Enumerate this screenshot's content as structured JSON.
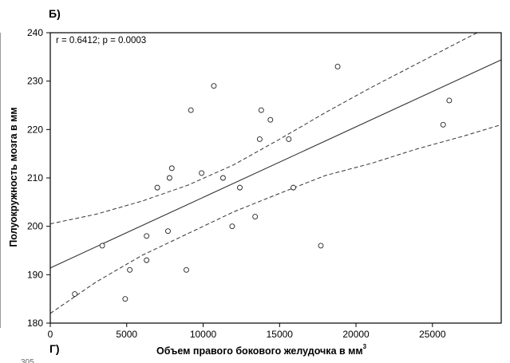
{
  "panel_label_top": "Б)",
  "panel_label_bottom": "Г)",
  "cut_text": "305",
  "chart_data": {
    "type": "scatter",
    "title": "",
    "xlabel_main": "Объем правого бокового желудочка в мм",
    "xlabel_sup": "3",
    "ylabel": "Полуокружность мозга в мм",
    "annotation": "r = 0.6412; p = 0.0003",
    "xlim": [
      0,
      29500
    ],
    "ylim": [
      180,
      240
    ],
    "x_ticks": [
      0,
      5000,
      10000,
      15000,
      20000,
      25000
    ],
    "y_ticks": [
      180,
      190,
      200,
      210,
      220,
      230,
      240
    ],
    "grid": false,
    "points": [
      {
        "x": 1600,
        "y": 186
      },
      {
        "x": 3400,
        "y": 196
      },
      {
        "x": 4900,
        "y": 185
      },
      {
        "x": 5200,
        "y": 191
      },
      {
        "x": 6300,
        "y": 198
      },
      {
        "x": 6300,
        "y": 193
      },
      {
        "x": 7000,
        "y": 208
      },
      {
        "x": 7700,
        "y": 199
      },
      {
        "x": 7800,
        "y": 210
      },
      {
        "x": 7950,
        "y": 212
      },
      {
        "x": 8900,
        "y": 191
      },
      {
        "x": 9200,
        "y": 224
      },
      {
        "x": 9900,
        "y": 211
      },
      {
        "x": 10700,
        "y": 229
      },
      {
        "x": 11300,
        "y": 210
      },
      {
        "x": 11900,
        "y": 200
      },
      {
        "x": 12400,
        "y": 208
      },
      {
        "x": 13400,
        "y": 202
      },
      {
        "x": 13700,
        "y": 218
      },
      {
        "x": 13800,
        "y": 224
      },
      {
        "x": 14400,
        "y": 222
      },
      {
        "x": 15600,
        "y": 218
      },
      {
        "x": 15900,
        "y": 208
      },
      {
        "x": 17700,
        "y": 196
      },
      {
        "x": 18800,
        "y": 233
      },
      {
        "x": 25700,
        "y": 221
      },
      {
        "x": 26100,
        "y": 226
      }
    ],
    "regression_line": {
      "x": [
        0,
        29500
      ],
      "y": [
        191.4,
        234.4
      ]
    },
    "confidence_band": {
      "x": [
        0,
        3000,
        6000,
        9000,
        12000,
        15000,
        18000,
        21000,
        24000,
        27000,
        29500
      ],
      "lower": [
        182.0,
        188.5,
        194.0,
        198.5,
        203.0,
        206.8,
        210.5,
        213.0,
        216.0,
        218.6,
        221.0
      ],
      "upper": [
        200.5,
        202.5,
        205.2,
        208.5,
        212.7,
        218.0,
        223.5,
        228.7,
        233.6,
        238.5,
        242.5
      ]
    }
  }
}
